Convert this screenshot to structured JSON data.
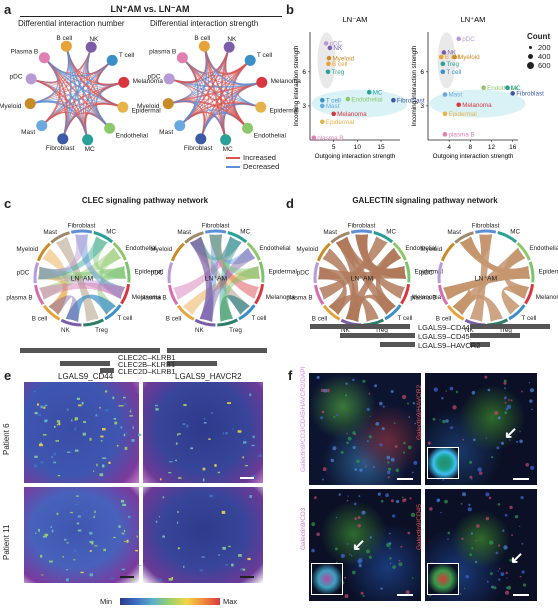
{
  "panels": {
    "a": {
      "letter": "a",
      "title": "LN⁺AM vs. LN⁻AM",
      "left_subtitle": "Differential interaction number",
      "right_subtitle": "Differential interaction strength",
      "legend": {
        "increased": "Increased",
        "decreased": "Decreased",
        "increased_color": "#d9534f",
        "decreased_color": "#5b8fd6"
      },
      "nodes_left": [
        "NK",
        "T cell",
        "Melanoma",
        "Epidermal",
        "Endothelial",
        "MC",
        "Fibroblast",
        "Mast",
        "Myeloid",
        "pDC",
        "Plasma B",
        "B cell"
      ],
      "nodes_right": [
        "NK",
        "T cell",
        "Melanoma",
        "Epidermal",
        "Endothelial",
        "MC",
        "Fibroblast",
        "Mast",
        "Myeloid",
        "pDC",
        "plasma B",
        "B cell"
      ],
      "node_colors": [
        "#7b5ea7",
        "#3a8fc8",
        "#d8373f",
        "#e6b34a",
        "#8dc86a",
        "#2aa198",
        "#3c5aa6",
        "#6aa9e0",
        "#c78b2a",
        "#b89ad6",
        "#e07fb0",
        "#e8a23a"
      ]
    },
    "b": {
      "letter": "b",
      "left_title": "LN⁻AM",
      "right_title": "LN⁺AM",
      "xlabel": "Outgoing interaction strength",
      "ylabel": "Incoming interaction strength",
      "count_title": "Count",
      "count_values": [
        "200",
        "400",
        "600"
      ]
    },
    "c": {
      "letter": "c",
      "title": "CLEC signaling pathway network",
      "left_center": "LN⁻AM",
      "right_center": "LN⁺AM",
      "left_labels": [
        "Fibroblast",
        "MC",
        "Endothelial",
        "Epidermal",
        "Melanoma",
        "T cell",
        "Treg",
        "NK",
        "B cell",
        "plasma B",
        "pDC",
        "Myeloid",
        "Mast"
      ],
      "right_labels": [
        "Fibroblast",
        "MC",
        "Endothelial",
        "Epidermal",
        "Melanoma",
        "T cell",
        "Treg",
        "NK",
        "B cell",
        "plasma B",
        "pDC",
        "Myeloid",
        "Mast"
      ],
      "pairs": [
        "CLEC2C–KLRB1",
        "CLEC2B–KLRB1",
        "CLEC2D–KLRB1"
      ]
    },
    "d": {
      "letter": "d",
      "title": "GALECTIN signaling pathway network",
      "left_center": "LN⁻AM",
      "right_center": "LN⁺AM",
      "left_labels": [
        "Fibroblast",
        "MC",
        "Endothelial",
        "Epidermal",
        "Melanoma",
        "T cell",
        "Treg",
        "NK",
        "B cell",
        "plasma B",
        "pDC",
        "Myeloid",
        "Mast"
      ],
      "right_labels": [
        "Fibroblast",
        "MC",
        "Endothelial",
        "Epidermal",
        "Melanoma",
        "T cell",
        "Treg",
        "NK",
        "B cell",
        "plasma B",
        "pDC",
        "Myeloid",
        "Mast"
      ],
      "pairs": [
        "LGALS9–CD44",
        "LGALS9–CD45",
        "LGALS9–HAVCR2"
      ]
    },
    "e": {
      "letter": "e",
      "col1": "LGALS9_CD44",
      "col2": "LGALS9_HAVCR2",
      "row1": "Patient 6",
      "row2": "Patient 11",
      "cbar_min": "Min",
      "cbar_max": "Max"
    },
    "f": {
      "letter": "f",
      "tl_label": "Galectin9/CD3/CD45/HAVCR2/DAPI",
      "tr_label": "Galectin9/HAVCR2",
      "bl_label": "Galectin9/CD3",
      "br_label": "Galectin9/CD45"
    }
  },
  "chart_data": [
    {
      "type": "scatter",
      "title": "LN⁻AM",
      "xlabel": "Outgoing interaction strength",
      "ylabel": "Incoming interaction strength",
      "xticks": [
        "5",
        "10",
        "15"
      ],
      "yticks": [
        "3",
        "6"
      ],
      "xlim": [
        0,
        19
      ],
      "ylim": [
        0,
        9.5
      ],
      "points": [
        {
          "label": "pDC",
          "x": 3.4,
          "y": 8.5,
          "color": "#b89ad6"
        },
        {
          "label": "NK",
          "x": 4.2,
          "y": 8.1,
          "color": "#7b5ea7"
        },
        {
          "label": "Myeloid",
          "x": 4.0,
          "y": 7.2,
          "color": "#c78b2a"
        },
        {
          "label": "B cell",
          "x": 3.9,
          "y": 6.7,
          "color": "#e8a23a"
        },
        {
          "label": "Treg",
          "x": 3.8,
          "y": 6.0,
          "color": "#2aa198"
        },
        {
          "label": "MC",
          "x": 12.5,
          "y": 4.2,
          "color": "#2aa198"
        },
        {
          "label": "Endothelial",
          "x": 8.0,
          "y": 3.6,
          "color": "#8dc86a"
        },
        {
          "label": "Fibroblast",
          "x": 17.6,
          "y": 3.5,
          "color": "#3c5aa6"
        },
        {
          "label": "T cell",
          "x": 2.6,
          "y": 3.5,
          "color": "#3a8fc8"
        },
        {
          "label": "Mast",
          "x": 2.6,
          "y": 3.0,
          "color": "#6aa9e0"
        },
        {
          "label": "Melanoma",
          "x": 5.0,
          "y": 2.3,
          "color": "#d8373f"
        },
        {
          "label": "Epidermal",
          "x": 2.6,
          "y": 1.6,
          "color": "#e6b34a"
        },
        {
          "label": "plasma B",
          "x": 0.8,
          "y": 0.2,
          "color": "#e07fb0"
        }
      ]
    },
    {
      "type": "scatter",
      "title": "LN⁺AM",
      "xlabel": "Outgoing interaction strength",
      "ylabel": "Incoming interaction strength",
      "xticks": [
        "4",
        "8",
        "12",
        "16"
      ],
      "yticks": [
        "3",
        "6"
      ],
      "xlim": [
        0,
        17
      ],
      "ylim": [
        0,
        9.5
      ],
      "points": [
        {
          "label": "pDC",
          "x": 5.8,
          "y": 8.9,
          "color": "#b89ad6"
        },
        {
          "label": "NK",
          "x": 3.0,
          "y": 7.7,
          "color": "#7b5ea7"
        },
        {
          "label": "B cell",
          "x": 2.5,
          "y": 7.3,
          "color": "#e8a23a"
        },
        {
          "label": "Myeloid",
          "x": 5.0,
          "y": 7.3,
          "color": "#c78b2a"
        },
        {
          "label": "Treg",
          "x": 2.8,
          "y": 6.7,
          "color": "#2aa198"
        },
        {
          "label": "T cell",
          "x": 2.8,
          "y": 6.0,
          "color": "#3a8fc8"
        },
        {
          "label": "Endothelial",
          "x": 10.5,
          "y": 4.6,
          "color": "#8dc86a"
        },
        {
          "label": "MC",
          "x": 15.0,
          "y": 4.6,
          "color": "#2aa198"
        },
        {
          "label": "Fibroblast",
          "x": 16.0,
          "y": 4.1,
          "color": "#3c5aa6"
        },
        {
          "label": "Mast",
          "x": 3.2,
          "y": 4.0,
          "color": "#6aa9e0"
        },
        {
          "label": "Melanoma",
          "x": 5.8,
          "y": 3.1,
          "color": "#d8373f"
        },
        {
          "label": "Epidermal",
          "x": 3.2,
          "y": 2.3,
          "color": "#e6b34a"
        },
        {
          "label": "plasma B",
          "x": 3.2,
          "y": 0.5,
          "color": "#e07fb0"
        }
      ]
    }
  ]
}
